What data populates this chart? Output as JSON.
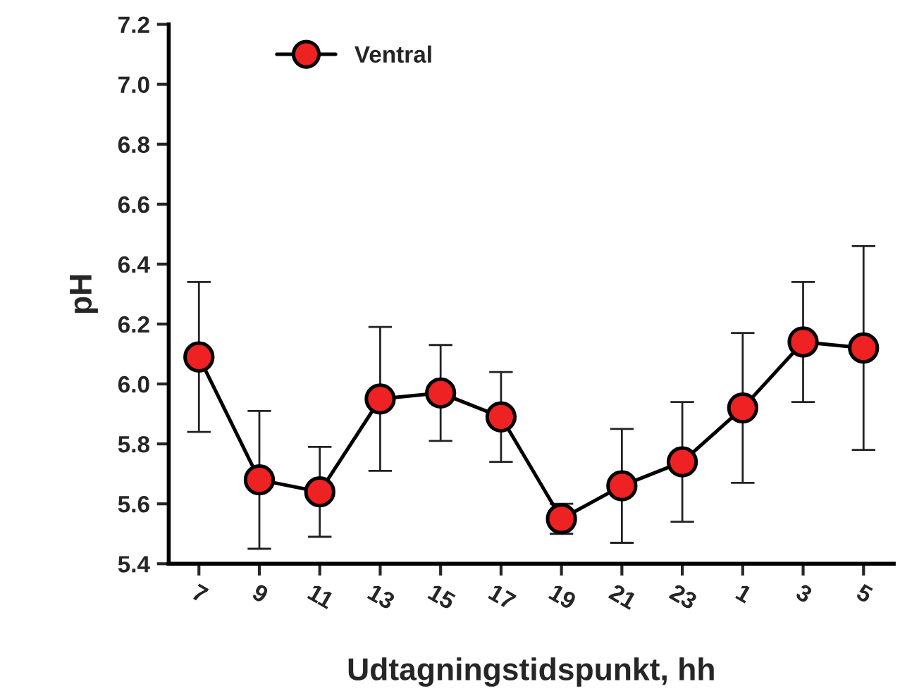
{
  "chart_data": {
    "type": "line",
    "xlabel": "Udtagningstidspunkt, hh",
    "ylabel": "pH",
    "categories": [
      "7",
      "9",
      "11",
      "13",
      "15",
      "17",
      "19",
      "21",
      "23",
      "1",
      "3",
      "5"
    ],
    "series": [
      {
        "name": "Ventral",
        "color": "#ee2222",
        "values": [
          6.09,
          5.68,
          5.64,
          5.95,
          5.97,
          5.89,
          5.55,
          5.66,
          5.74,
          5.92,
          6.14,
          6.12
        ],
        "errors": [
          0.25,
          0.23,
          0.15,
          0.24,
          0.16,
          0.15,
          0.05,
          0.19,
          0.2,
          0.25,
          0.2,
          0.34
        ]
      }
    ],
    "ylim": [
      5.4,
      7.2
    ],
    "yticks": [
      {
        "value": 5.4,
        "label": "5.4"
      },
      {
        "value": 5.6,
        "label": "5.6"
      },
      {
        "value": 5.8,
        "label": "5.8"
      },
      {
        "value": 6.0,
        "label": "6.0"
      },
      {
        "value": 6.2,
        "label": "6.2"
      },
      {
        "value": 6.4,
        "label": "6.4"
      },
      {
        "value": 6.6,
        "label": "6.6"
      },
      {
        "value": 6.8,
        "label": "6.8"
      },
      {
        "value": 7.0,
        "label": "7.0"
      },
      {
        "value": 7.2,
        "label": "7.2"
      }
    ],
    "grid": false,
    "legend": "top left",
    "marker": "circle",
    "line_style": "solid"
  }
}
